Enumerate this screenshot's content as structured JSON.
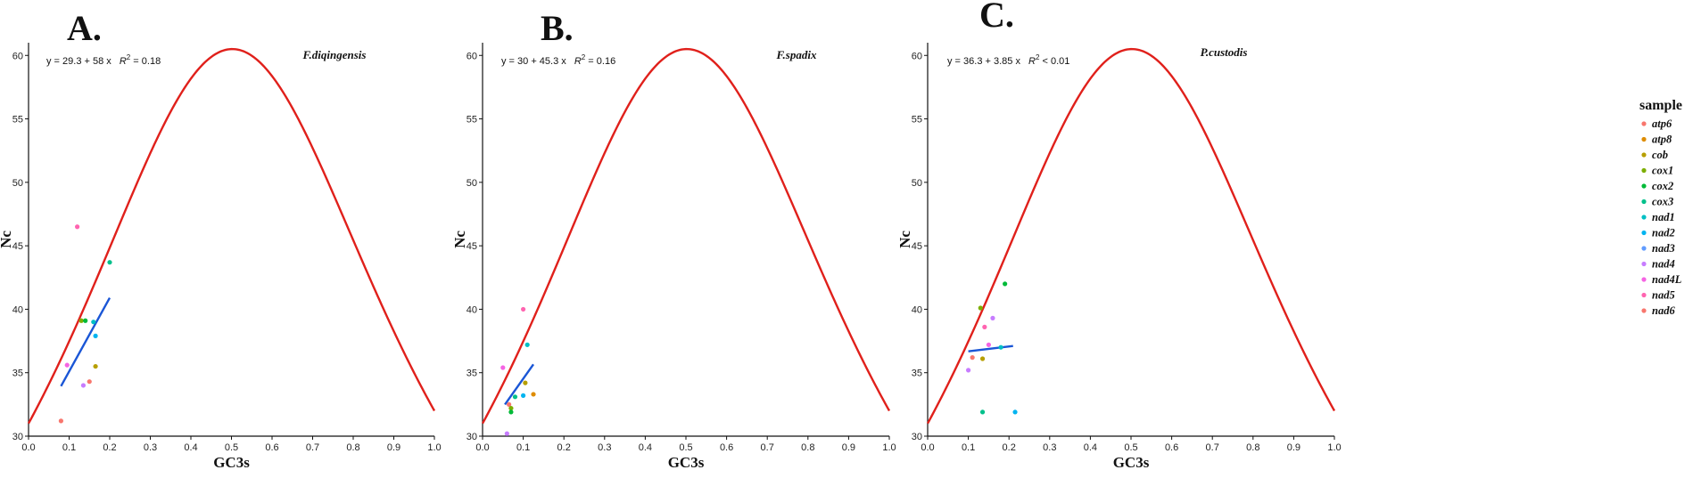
{
  "colors": {
    "expected_curve": "#e0201b",
    "regression_line": "#1a56d6",
    "axis": "#111111"
  },
  "legend": {
    "title": "sample",
    "entries": [
      {
        "name": "atp6",
        "color": "#f8766d"
      },
      {
        "name": "atp8",
        "color": "#de8c00"
      },
      {
        "name": "cob",
        "color": "#b79f00"
      },
      {
        "name": "cox1",
        "color": "#7cae00"
      },
      {
        "name": "cox2",
        "color": "#00ba38"
      },
      {
        "name": "cox3",
        "color": "#00c08b"
      },
      {
        "name": "nad1",
        "color": "#00bfc4"
      },
      {
        "name": "nad2",
        "color": "#00b4f0"
      },
      {
        "name": "nad3",
        "color": "#619cff"
      },
      {
        "name": "nad4",
        "color": "#c77cff"
      },
      {
        "name": "nad4L",
        "color": "#f564e3"
      },
      {
        "name": "nad5",
        "color": "#ff64b0"
      },
      {
        "name": "nad6",
        "color": "#f8766d"
      }
    ]
  },
  "chart_data": [
    {
      "type": "scatter",
      "panel_label": "A.",
      "species": "F.diqingensis",
      "equation": "y = 29.3 + 58 x",
      "r2_label": "R",
      "r2_value": " = 0.18",
      "xlabel": "GC3s",
      "ylabel": "Nc",
      "xlim": [
        0,
        1
      ],
      "ylim": [
        30,
        61
      ],
      "x_ticks": [
        "0.0",
        "0.1",
        "0.2",
        "0.3",
        "0.4",
        "0.5",
        "0.6",
        "0.7",
        "0.8",
        "0.9",
        "1.0"
      ],
      "y_ticks": [
        "30",
        "35",
        "40",
        "45",
        "50",
        "55",
        "60"
      ],
      "regression": {
        "intercept": 29.3,
        "slope": 58,
        "x_range": [
          0.08,
          0.2
        ]
      },
      "points": [
        {
          "gene": "nad6",
          "x": 0.08,
          "y": 31.2,
          "color": "#f8766d"
        },
        {
          "gene": "nad4L",
          "x": 0.095,
          "y": 35.6,
          "color": "#f564e3"
        },
        {
          "gene": "nad5",
          "x": 0.12,
          "y": 46.5,
          "color": "#ff64b0"
        },
        {
          "gene": "cox1",
          "x": 0.13,
          "y": 39.1,
          "color": "#7cae00"
        },
        {
          "gene": "cox2",
          "x": 0.14,
          "y": 39.1,
          "color": "#00ba38"
        },
        {
          "gene": "nad4",
          "x": 0.135,
          "y": 34.0,
          "color": "#c77cff"
        },
        {
          "gene": "atp6",
          "x": 0.15,
          "y": 34.3,
          "color": "#f8766d"
        },
        {
          "gene": "cob",
          "x": 0.165,
          "y": 35.5,
          "color": "#b79f00"
        },
        {
          "gene": "nad1",
          "x": 0.16,
          "y": 39.0,
          "color": "#00bfc4"
        },
        {
          "gene": "nad2",
          "x": 0.165,
          "y": 37.9,
          "color": "#00b4f0"
        },
        {
          "gene": "cox3",
          "x": 0.2,
          "y": 43.7,
          "color": "#00c08b"
        }
      ]
    },
    {
      "type": "scatter",
      "panel_label": "B.",
      "species": "F.spadix",
      "equation": "y = 30 + 45.3 x",
      "r2_label": "R",
      "r2_value": " = 0.16",
      "xlabel": "GC3s",
      "ylabel": "Nc",
      "xlim": [
        0,
        1
      ],
      "ylim": [
        30,
        61
      ],
      "x_ticks": [
        "0.0",
        "0.1",
        "0.2",
        "0.3",
        "0.4",
        "0.5",
        "0.6",
        "0.7",
        "0.8",
        "0.9",
        "1.0"
      ],
      "y_ticks": [
        "30",
        "35",
        "40",
        "45",
        "50",
        "55",
        "60"
      ],
      "regression": {
        "intercept": 30,
        "slope": 45.3,
        "x_range": [
          0.055,
          0.125
        ]
      },
      "points": [
        {
          "gene": "nad4L",
          "x": 0.05,
          "y": 35.4,
          "color": "#f564e3"
        },
        {
          "gene": "nad5",
          "x": 0.1,
          "y": 40.0,
          "color": "#ff64b0"
        },
        {
          "gene": "nad1",
          "x": 0.11,
          "y": 37.2,
          "color": "#00bfc4"
        },
        {
          "gene": "nad6",
          "x": 0.065,
          "y": 32.5,
          "color": "#f8766d"
        },
        {
          "gene": "cox1",
          "x": 0.07,
          "y": 32.2,
          "color": "#7cae00"
        },
        {
          "gene": "cox2",
          "x": 0.07,
          "y": 31.9,
          "color": "#00ba38"
        },
        {
          "gene": "cox3",
          "x": 0.08,
          "y": 33.1,
          "color": "#00c08b"
        },
        {
          "gene": "nad2",
          "x": 0.1,
          "y": 33.2,
          "color": "#00b4f0"
        },
        {
          "gene": "cob",
          "x": 0.105,
          "y": 34.2,
          "color": "#b79f00"
        },
        {
          "gene": "atp8",
          "x": 0.125,
          "y": 33.3,
          "color": "#de8c00"
        },
        {
          "gene": "nad4",
          "x": 0.06,
          "y": 30.2,
          "color": "#c77cff"
        }
      ]
    },
    {
      "type": "scatter",
      "panel_label": "C.",
      "species": "P.custodis",
      "equation": "y = 36.3 + 3.85 x",
      "r2_label": "R",
      "r2_value": " < 0.01",
      "xlabel": "GC3s",
      "ylabel": "Nc",
      "xlim": [
        0,
        1
      ],
      "ylim": [
        30,
        61
      ],
      "x_ticks": [
        "0.0",
        "0.1",
        "0.2",
        "0.3",
        "0.4",
        "0.5",
        "0.6",
        "0.7",
        "0.8",
        "0.9",
        "1.0"
      ],
      "y_ticks": [
        "30",
        "35",
        "40",
        "45",
        "50",
        "55",
        "60"
      ],
      "regression": {
        "intercept": 36.3,
        "slope": 3.85,
        "x_range": [
          0.1,
          0.21
        ]
      },
      "points": [
        {
          "gene": "nad4",
          "x": 0.1,
          "y": 35.2,
          "color": "#c77cff"
        },
        {
          "gene": "atp6",
          "x": 0.11,
          "y": 36.2,
          "color": "#f8766d"
        },
        {
          "gene": "cox1",
          "x": 0.13,
          "y": 40.1,
          "color": "#7cae00"
        },
        {
          "gene": "cob",
          "x": 0.135,
          "y": 36.1,
          "color": "#b79f00"
        },
        {
          "gene": "nad5",
          "x": 0.14,
          "y": 38.6,
          "color": "#ff64b0"
        },
        {
          "gene": "nad4L",
          "x": 0.15,
          "y": 37.2,
          "color": "#f564e3"
        },
        {
          "gene": "nad3",
          "x": 0.16,
          "y": 39.3,
          "color": "#c77cff"
        },
        {
          "gene": "cox2",
          "x": 0.19,
          "y": 42.0,
          "color": "#00ba38"
        },
        {
          "gene": "cox3",
          "x": 0.135,
          "y": 31.9,
          "color": "#00c08b"
        },
        {
          "gene": "nad2",
          "x": 0.215,
          "y": 31.9,
          "color": "#00b4f0"
        },
        {
          "gene": "nad1",
          "x": 0.18,
          "y": 37.0,
          "color": "#00bfc4"
        }
      ]
    }
  ]
}
